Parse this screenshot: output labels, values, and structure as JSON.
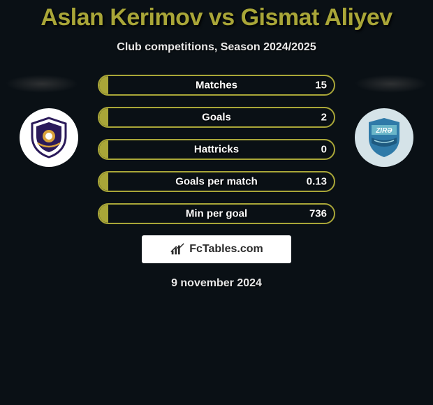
{
  "background_color": "#0a1015",
  "title": {
    "text": "Aslan Kerimov vs Gismat Aliyev",
    "color": "#a9a638",
    "fontsize": 34
  },
  "subtitle": {
    "text": "Club competitions, Season 2024/2025",
    "color": "#e8e8e8",
    "fontsize": 16
  },
  "stats": {
    "bar_border_color": "#a9a638",
    "bar_fill_color": "#a9a638",
    "text_color": "#ffffff",
    "rows": [
      {
        "label": "Matches",
        "left": "",
        "right": "15",
        "fill_pct": 4
      },
      {
        "label": "Goals",
        "left": "",
        "right": "2",
        "fill_pct": 4
      },
      {
        "label": "Hattricks",
        "left": "",
        "right": "0",
        "fill_pct": 4
      },
      {
        "label": "Goals per match",
        "left": "",
        "right": "0.13",
        "fill_pct": 4
      },
      {
        "label": "Min per goal",
        "left": "",
        "right": "736",
        "fill_pct": 4
      }
    ]
  },
  "clubs": {
    "left": {
      "bg": "#ffffff",
      "badge_primary": "#2b1a5a",
      "badge_accent": "#d9a23a"
    },
    "right": {
      "bg": "#d5e3e8",
      "badge_primary": "#2f7aa8",
      "badge_accent": "#6ab6c9",
      "label": "ZIRƏ"
    }
  },
  "branding": {
    "text": "FcTables.com",
    "bg": "#ffffff",
    "text_color": "#2a2a2a"
  },
  "date": {
    "text": "9 november 2024",
    "color": "#e8e8e8"
  }
}
